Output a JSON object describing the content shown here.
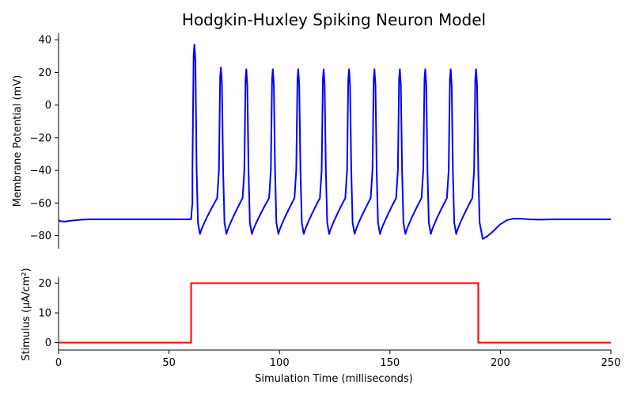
{
  "chart_data": [
    {
      "type": "line",
      "title": "Hodgkin-Huxley Spiking Neuron Model",
      "ylabel": "Membrane Potential (mV)",
      "xlim": [
        0,
        250
      ],
      "ylim": [
        -88,
        44
      ],
      "yticks": [
        40,
        20,
        0,
        -20,
        -40,
        -60,
        -80
      ],
      "ytick_labels": [
        "40",
        "20",
        "0",
        "−20",
        "−40",
        "−60",
        "−80"
      ],
      "resting_potential": -70,
      "stimulus_window": [
        60,
        190
      ],
      "spikes": [
        {
          "peak_t": 61.5,
          "peak_v": 37,
          "trough_t": 64.0,
          "trough_v": -79
        },
        {
          "peak_t": 73.5,
          "peak_v": 23,
          "trough_t": 76.0,
          "trough_v": -79
        },
        {
          "peak_t": 85.0,
          "peak_v": 22,
          "trough_t": 87.5,
          "trough_v": -79
        },
        {
          "peak_t": 97.0,
          "peak_v": 22,
          "trough_t": 99.5,
          "trough_v": -79
        },
        {
          "peak_t": 108.5,
          "peak_v": 22,
          "trough_t": 111.0,
          "trough_v": -79
        },
        {
          "peak_t": 120.0,
          "peak_v": 22,
          "trough_t": 122.5,
          "trough_v": -79
        },
        {
          "peak_t": 131.5,
          "peak_v": 22,
          "trough_t": 134.0,
          "trough_v": -79
        },
        {
          "peak_t": 143.0,
          "peak_v": 22,
          "trough_t": 145.5,
          "trough_v": -79
        },
        {
          "peak_t": 154.5,
          "peak_v": 22,
          "trough_t": 157.0,
          "trough_v": -79
        },
        {
          "peak_t": 166.0,
          "peak_v": 22,
          "trough_t": 168.5,
          "trough_v": -79
        },
        {
          "peak_t": 177.5,
          "peak_v": 22,
          "trough_t": 180.0,
          "trough_v": -79
        },
        {
          "peak_t": 189.0,
          "peak_v": 22,
          "trough_t": 192.0,
          "trough_v": -82
        }
      ],
      "color": "#0000ff"
    },
    {
      "type": "line",
      "xlabel": "Simulation Time (milliseconds)",
      "ylabel": "Stimulus (μA/cm²)",
      "xlim": [
        0,
        250
      ],
      "ylim": [
        -2.5,
        22
      ],
      "xticks": [
        0,
        50,
        100,
        150,
        200,
        250
      ],
      "xtick_labels": [
        "0",
        "50",
        "100",
        "150",
        "200",
        "250"
      ],
      "yticks": [
        20,
        10,
        0
      ],
      "ytick_labels": [
        "20",
        "10",
        "0"
      ],
      "x": [
        0,
        60,
        60,
        190,
        190,
        250
      ],
      "y": [
        0,
        0,
        20,
        20,
        0,
        0
      ],
      "color": "#ff0000"
    }
  ]
}
